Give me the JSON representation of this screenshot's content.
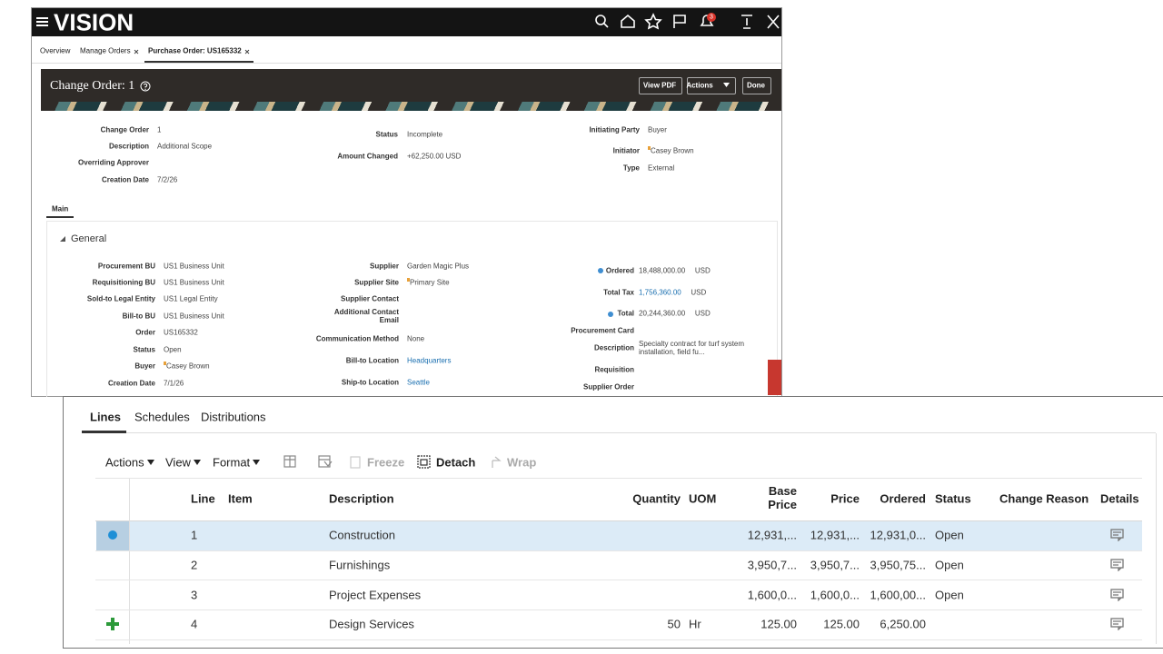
{
  "header": {
    "logo": "VISION",
    "notification_count": "3"
  },
  "tabs": [
    "Overview",
    "Manage Orders",
    "Purchase Order: US165332"
  ],
  "page": {
    "title": "Change Order: 1",
    "buttons": [
      "View PDF",
      "Actions",
      "Done"
    ]
  },
  "summary": {
    "col1": [
      {
        "label": "Change Order",
        "value": "1"
      },
      {
        "label": "Description",
        "value": "Additional Scope"
      },
      {
        "label": "Overriding Approver"
      },
      {
        "label": "Creation Date",
        "value": "7/2/26"
      }
    ],
    "col2": [
      {
        "label": "Status",
        "value": "Incomplete"
      },
      {
        "label": "Amount Changed",
        "value": "+62,250.00 USD"
      }
    ],
    "col3": [
      {
        "label": "Initiating Party",
        "value": "Buyer"
      },
      {
        "label": "Initiator",
        "value": "Casey Brown"
      },
      {
        "label": "Type",
        "value": "External"
      }
    ]
  },
  "main_tab": "Main",
  "section": "General",
  "general": {
    "col1": [
      {
        "label": "Procurement BU",
        "value": "US1 Business Unit"
      },
      {
        "label": "Requisitioning BU",
        "value": "US1 Business Unit"
      },
      {
        "label": "Sold-to Legal Entity",
        "value": "US1 Legal Entity"
      },
      {
        "label": "Bill-to BU",
        "value": "US1 Business Unit"
      },
      {
        "label": "Order",
        "value": "US165332"
      },
      {
        "label": "Status",
        "value": "Open"
      },
      {
        "label": "Buyer",
        "value": "Casey Brown"
      },
      {
        "label": "Creation Date",
        "value": "7/1/26"
      }
    ],
    "col2": [
      {
        "label": "Supplier",
        "value": "Garden Magic Plus"
      },
      {
        "label": "Supplier Site",
        "value": "Primary Site"
      },
      {
        "label": "Supplier Contact"
      },
      {
        "label": "Additional Contact Email"
      },
      {
        "label": "Communication Method",
        "value": "None"
      },
      {
        "label": "Bill-to Location",
        "value": "Headquarters"
      },
      {
        "label": "Ship-to Location",
        "value": "Seattle"
      }
    ],
    "col3": [
      {
        "label": "Ordered",
        "value": "18,488,000.00",
        "unit": "USD"
      },
      {
        "label": "Total Tax",
        "value": "1,756,360.00",
        "unit": "USD"
      },
      {
        "label": "Total",
        "value": "20,244,360.00",
        "unit": "USD"
      },
      {
        "label": "Procurement Card"
      },
      {
        "label": "Description",
        "value": "Specialty contract for turf system installation, field fu..."
      },
      {
        "label": "Requisition"
      },
      {
        "label": "Supplier Order"
      }
    ]
  },
  "lines_panel": {
    "tabs": [
      "Lines",
      "Schedules",
      "Distributions"
    ],
    "toolbar": [
      "Actions",
      "View",
      "Format",
      "Freeze",
      "Detach",
      "Wrap"
    ],
    "columns": [
      "Line",
      "Item",
      "Description",
      "Quantity",
      "UOM",
      "Base Price",
      "Price",
      "Ordered",
      "Status",
      "Change Reason",
      "Details"
    ],
    "rows": [
      {
        "line": "1",
        "description": "Construction",
        "base_price": "12,931,...",
        "price": "12,931,...",
        "ordered": "12,931,0...",
        "status": "Open"
      },
      {
        "line": "2",
        "description": "Furnishings",
        "base_price": "3,950,7...",
        "price": "3,950,7...",
        "ordered": "3,950,75...",
        "status": "Open"
      },
      {
        "line": "3",
        "description": "Project Expenses",
        "base_price": "1,600,0...",
        "price": "1,600,0...",
        "ordered": "1,600,00...",
        "status": "Open"
      },
      {
        "line": "4",
        "description": "Design Services",
        "quantity": "50",
        "uom": "Hr",
        "base_price": "125.00",
        "price": "125.00",
        "ordered": "6,250.00"
      }
    ]
  }
}
